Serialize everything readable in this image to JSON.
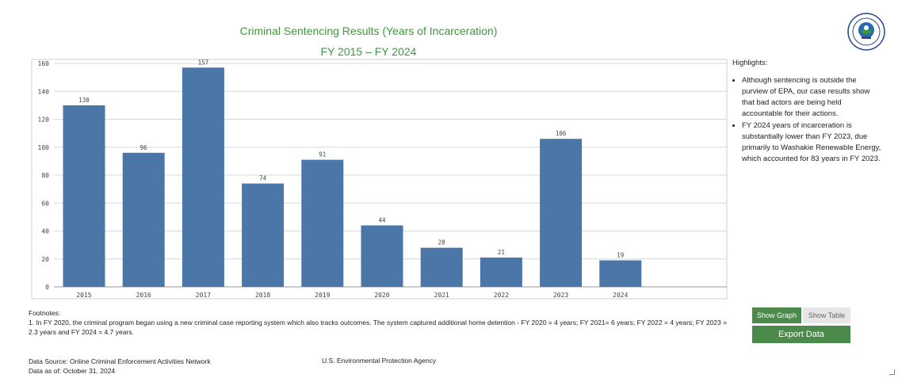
{
  "header": {
    "title": "Criminal Sentencing Results (Years of Incarceration)",
    "subtitle": "FY 2015 – FY 2024"
  },
  "chart_data": {
    "type": "bar",
    "categories": [
      "2015",
      "2016",
      "2017",
      "2018",
      "2019",
      "2020",
      "2021",
      "2022",
      "2023",
      "2024"
    ],
    "values": [
      130,
      96,
      157,
      74,
      91,
      44,
      28,
      21,
      106,
      19
    ],
    "yticks": [
      0,
      20,
      40,
      60,
      80,
      100,
      120,
      140,
      160
    ],
    "ylim": [
      0,
      160
    ],
    "grid": true,
    "bar_color": "#4a76a8",
    "data_labels": true
  },
  "highlights": {
    "heading": "Highlights:",
    "items": [
      "Although sentencing is outside the purview of EPA, our case results show that bad actors are being held accountable for their actions.",
      "FY 2024 years of incarceration is substantially lower than FY 2023, due primarily to Washakie Renewable Energy, which accounted for 83 years in FY 2023."
    ]
  },
  "footnotes": {
    "heading": "Footnotes:",
    "text": "1. In FY 2020, the criminal program began using a new criminal case reporting system which also tracks outcomes. The system captured additional home detention - FY 2020 = 4 years; FY 2021= 6 years; FY 2022 = 4 years; FY 2023 = 2.3 years and FY 2024 = 4.7 years."
  },
  "source": {
    "data_source": "Data Source: Online Criminal Enforcement Activities Network",
    "data_as_of": "Data as of: October 31, 2024",
    "agency": "U.S. Environmental Protection Agency"
  },
  "controls": {
    "show_graph": "Show Graph",
    "show_table": "Show Table",
    "export": "Export Data"
  },
  "colors": {
    "accent": "#4b8a4b",
    "title": "#3a9a3a"
  },
  "icons": {
    "seal": "epa-seal-icon"
  }
}
